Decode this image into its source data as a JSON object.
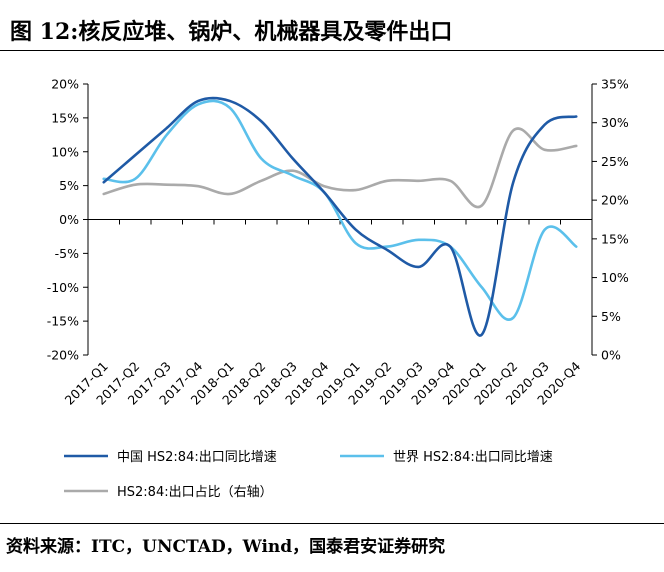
{
  "figure": {
    "title": "图 12:核反应堆、锅炉、机械器具及零件出口",
    "source": "资料来源：ITC，UNCTAD，Wind，国泰君安证券研究"
  },
  "chart_data": {
    "type": "line",
    "categories": [
      "2017-Q1",
      "2017-Q2",
      "2017-Q3",
      "2017-Q4",
      "2018-Q1",
      "2018-Q2",
      "2018-Q3",
      "2018-Q4",
      "2019-Q1",
      "2019-Q2",
      "2019-Q3",
      "2019-Q4",
      "2020-Q1",
      "2020-Q2",
      "2020-Q3",
      "2020-Q4"
    ],
    "left_axis": {
      "min": -20,
      "max": 20,
      "step": 5,
      "tick_labels": [
        "-20%",
        "-15%",
        "-10%",
        "-5%",
        "0%",
        "5%",
        "10%",
        "15%",
        "20%"
      ]
    },
    "right_axis": {
      "min": 0,
      "max": 35,
      "step": 5,
      "tick_labels": [
        "0%",
        "5%",
        "10%",
        "15%",
        "20%",
        "25%",
        "30%",
        "35%"
      ]
    },
    "series": [
      {
        "name": "中国 HS2:84:出口同比增速",
        "axis": "left",
        "color": "#1f5aa6",
        "values": [
          5.5,
          9.5,
          13.5,
          17.5,
          17.5,
          14.5,
          9.0,
          4.0,
          -1.5,
          -4.5,
          -7.0,
          -4.0,
          -17.0,
          5.5,
          14.0,
          15.2
        ]
      },
      {
        "name": "世界 HS2:84:出口同比增速",
        "axis": "left",
        "color": "#5bc0eb",
        "values": [
          6.0,
          6.0,
          12.5,
          17.0,
          16.5,
          9.0,
          6.5,
          4.0,
          -3.5,
          -4.0,
          -3.0,
          -4.0,
          -10.0,
          -14.5,
          -1.5,
          -4.0
        ]
      },
      {
        "name": "HS2:84:出口占比（右轴）",
        "axis": "right",
        "color": "#aaaaaa",
        "values": [
          20.8,
          22.0,
          22.0,
          21.8,
          20.8,
          22.5,
          23.8,
          21.8,
          21.3,
          22.5,
          22.5,
          22.5,
          19.3,
          29.0,
          26.5,
          27.0
        ]
      }
    ],
    "legend_position": "bottom",
    "grid": false
  }
}
